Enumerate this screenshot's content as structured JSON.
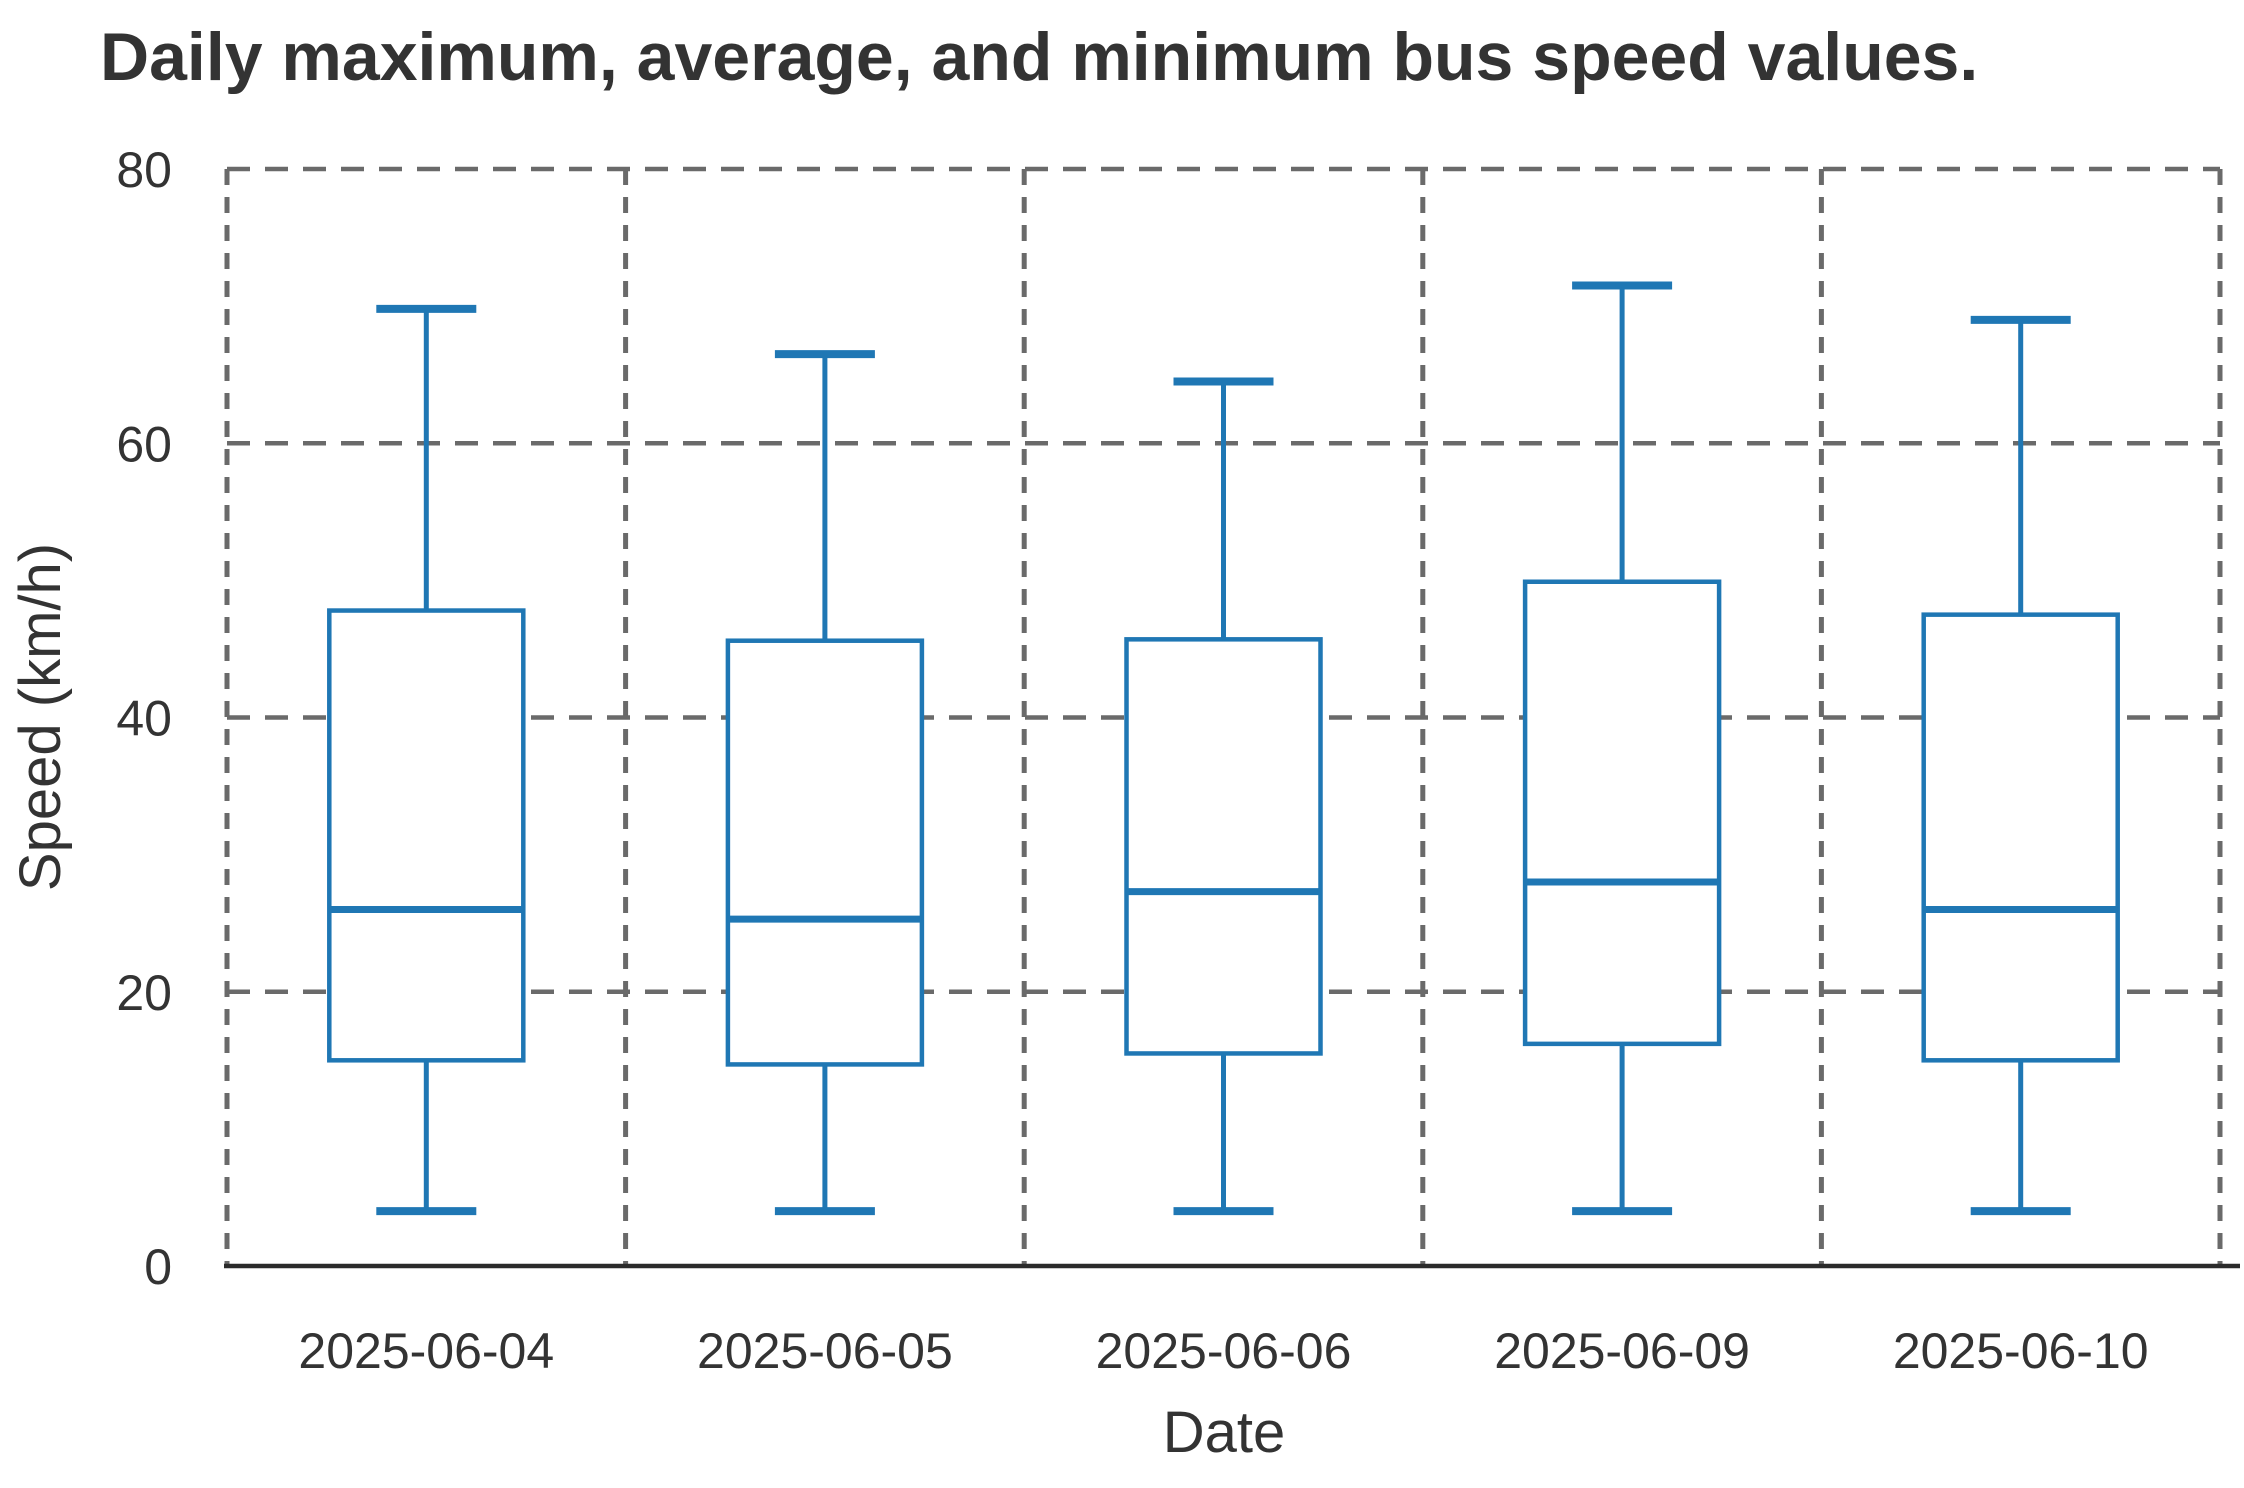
{
  "chart_data": {
    "type": "boxplot",
    "title": "Daily maximum, average, and minimum bus speed values.",
    "xlabel": "Date",
    "ylabel": "Speed (km/h)",
    "categories": [
      "2025-06-04",
      "2025-06-05",
      "2025-06-06",
      "2025-06-09",
      "2025-06-10"
    ],
    "series": [
      {
        "category": "2025-06-04",
        "min": 4,
        "q1": 15.0,
        "median": 26.0,
        "q3": 47.8,
        "max": 69.8
      },
      {
        "category": "2025-06-05",
        "min": 4,
        "q1": 14.7,
        "median": 25.3,
        "q3": 45.6,
        "max": 66.5
      },
      {
        "category": "2025-06-06",
        "min": 4,
        "q1": 15.5,
        "median": 27.3,
        "q3": 45.7,
        "max": 64.5
      },
      {
        "category": "2025-06-09",
        "min": 4,
        "q1": 16.2,
        "median": 28.0,
        "q3": 49.9,
        "max": 71.5
      },
      {
        "category": "2025-06-10",
        "min": 4,
        "q1": 15.0,
        "median": 26.0,
        "q3": 47.5,
        "max": 69.0
      }
    ],
    "ylim": [
      0,
      80
    ],
    "y_ticks": [
      0,
      20,
      40,
      60,
      80
    ],
    "grid": {
      "horizontal": "dashed at y ticks",
      "vertical": "dashed at category boundaries",
      "bottom_axis": "solid"
    },
    "legend_position": "none",
    "colors": {
      "box": "#1f77b4",
      "grid": "#6a6a6a",
      "axis": "#2b2b2b",
      "text": "#333333",
      "background": "#ffffff"
    }
  }
}
